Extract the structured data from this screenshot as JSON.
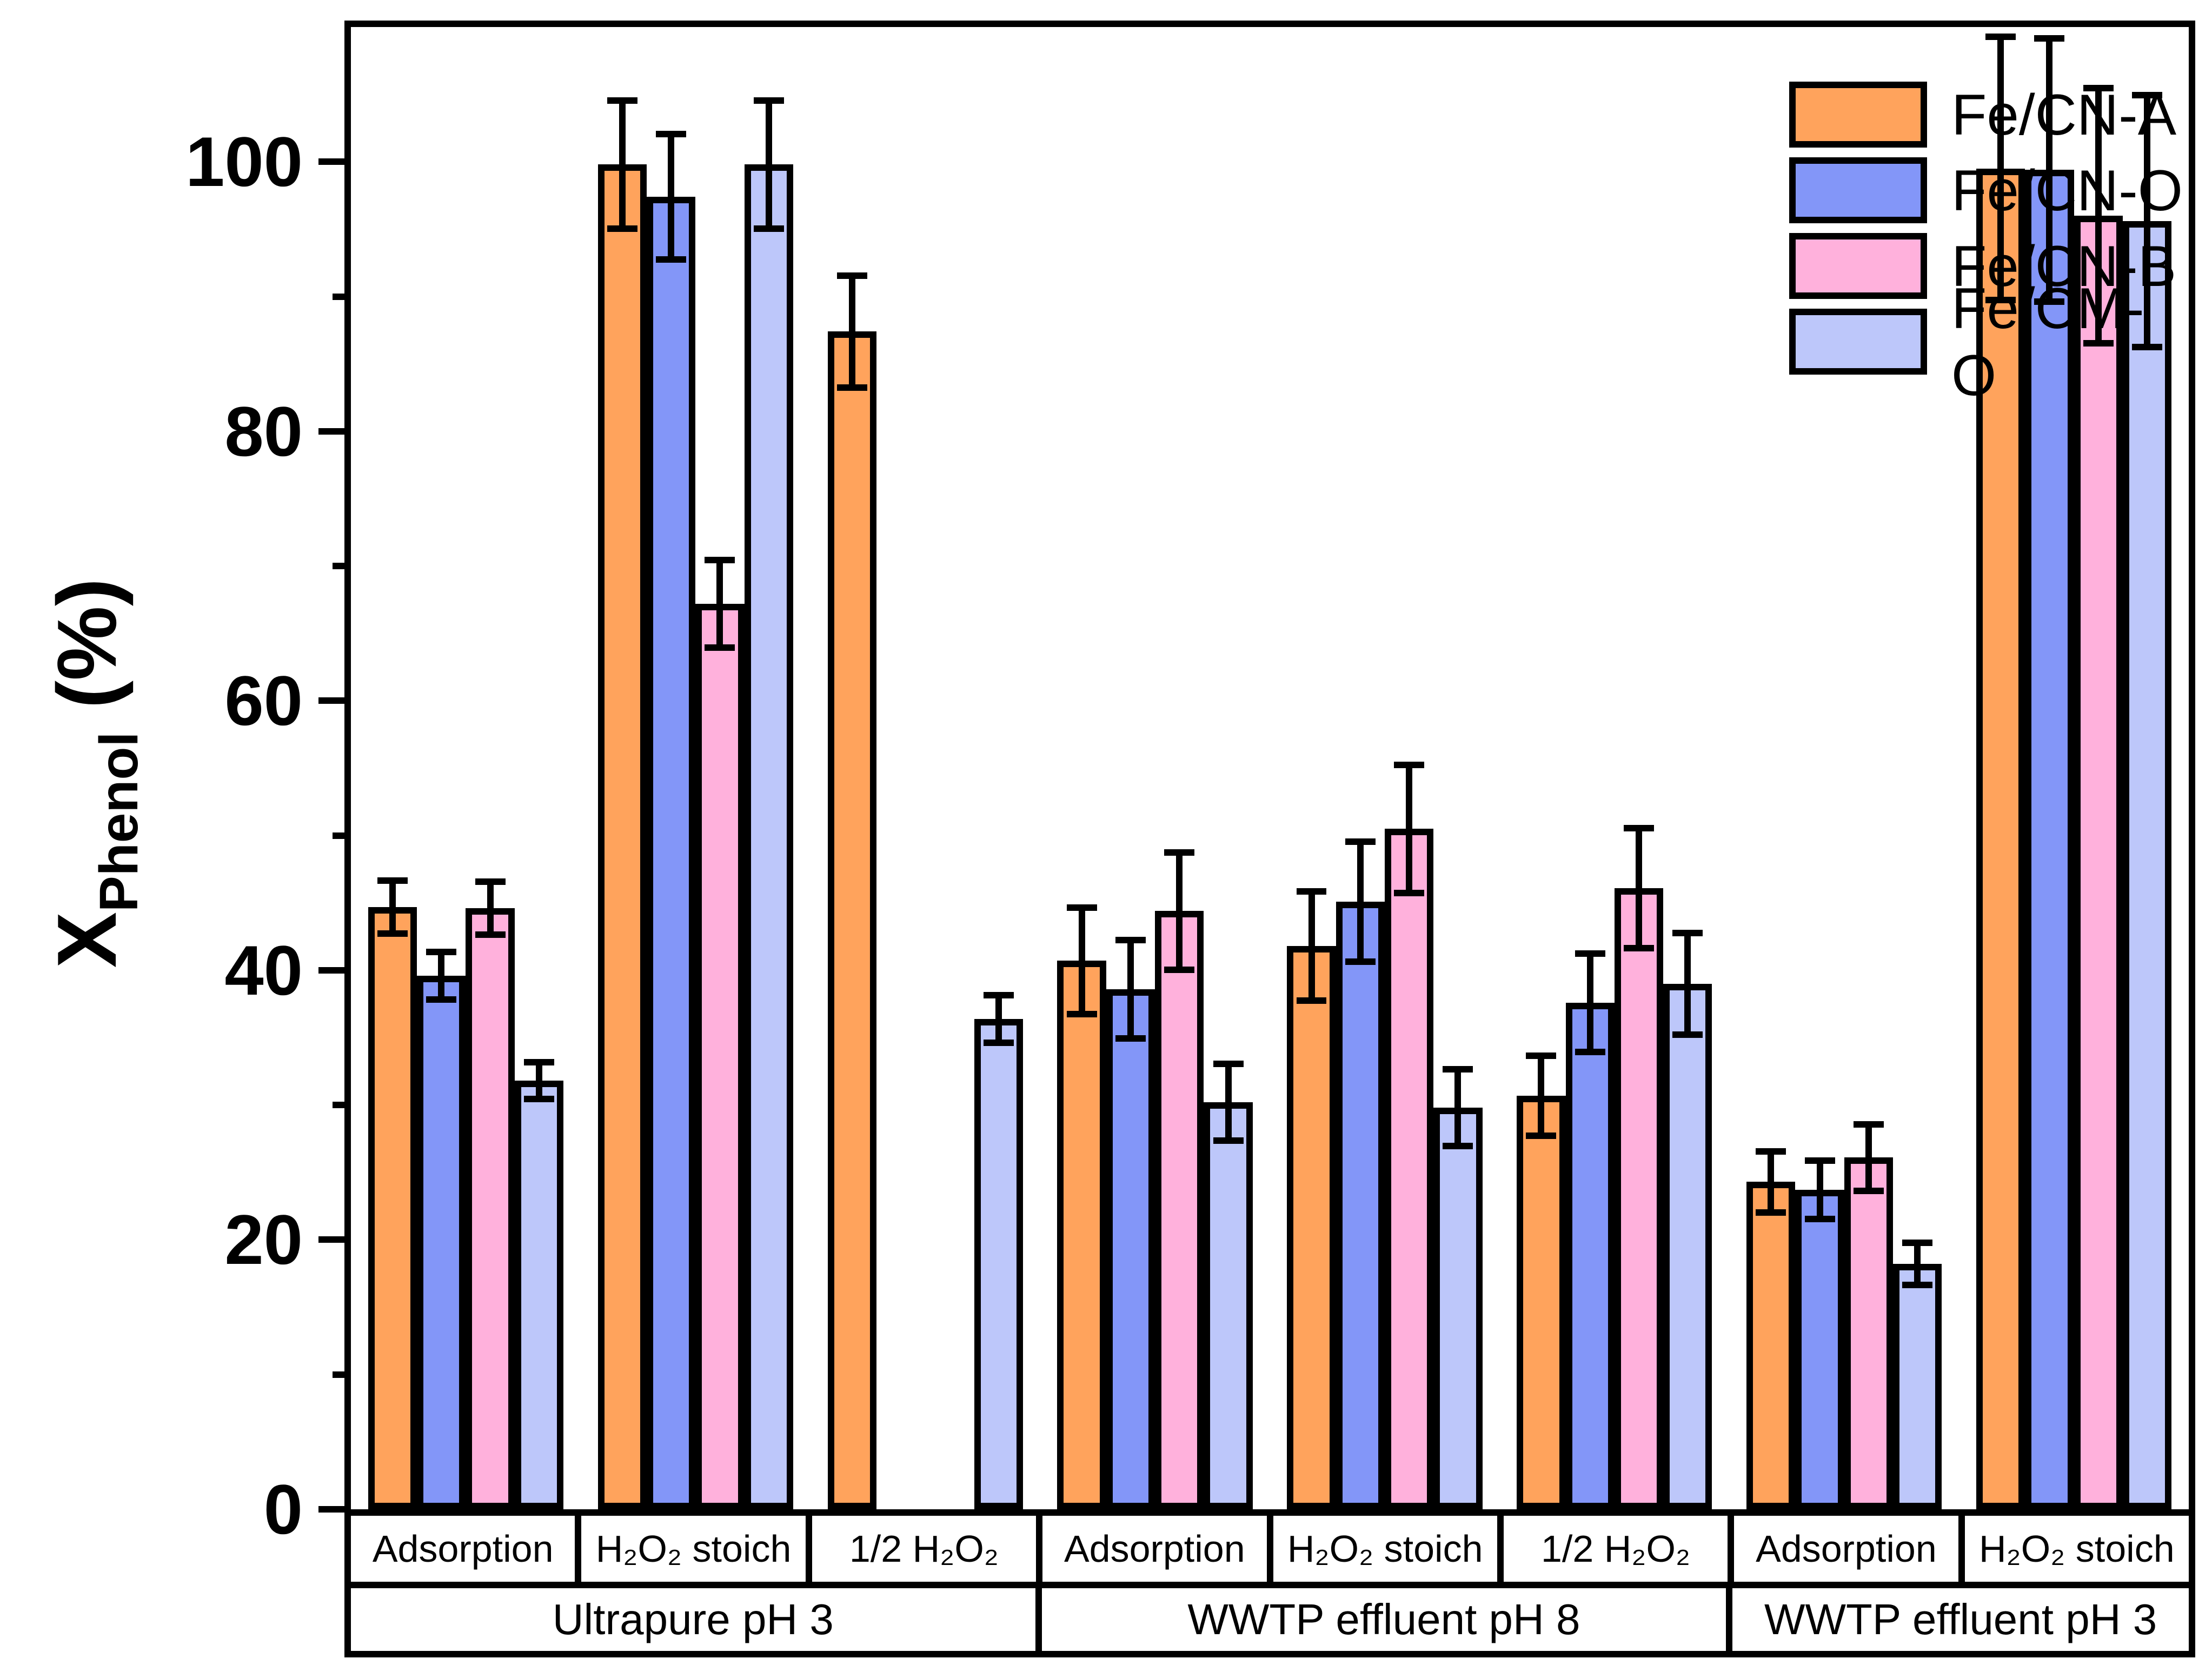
{
  "chart_data": {
    "type": "bar",
    "title": "",
    "ylabel": {
      "main": "X",
      "sub": "Phenol",
      "unit": " (%)"
    },
    "ylim": [
      0,
      110
    ],
    "yticks_major": [
      0,
      20,
      40,
      60,
      80,
      100
    ],
    "yticks_minor": [
      10,
      30,
      50,
      70,
      90
    ],
    "grid": false,
    "legend_position": "top-right-inside",
    "categories": [
      "Adsorption",
      "H₂O₂ stoich",
      "1/2 H₂O₂",
      "Adsorption",
      "H₂O₂ stoich",
      "1/2 H₂O₂",
      "Adsorption",
      "H₂O₂ stoich"
    ],
    "category_groups": [
      {
        "label": "Ultrapure pH 3",
        "span": 3
      },
      {
        "label": "WWTP effluent pH 8",
        "span": 3
      },
      {
        "label": "WWTP effluent pH 3",
        "span": 2
      }
    ],
    "series": [
      {
        "name": "Fe/CN-A",
        "color": "#FFA35C",
        "values": [
          44.7,
          99.8,
          87.4,
          40.7,
          41.8,
          30.7,
          24.3,
          99.5
        ],
        "errors": [
          2.2,
          5.0,
          4.4,
          4.2,
          4.3,
          3.2,
          2.5,
          10.0
        ]
      },
      {
        "name": "Fe/CN-O",
        "color": "#8396F8",
        "values": [
          39.6,
          97.4,
          null,
          38.6,
          45.1,
          37.6,
          23.7,
          99.4
        ],
        "errors": [
          2.0,
          4.9,
          null,
          3.9,
          4.7,
          3.9,
          2.4,
          10.0
        ]
      },
      {
        "name": "Fe/CN-B",
        "color": "#FFB1DC",
        "values": [
          44.6,
          67.2,
          null,
          44.4,
          50.5,
          46.1,
          26.1,
          96.0
        ],
        "errors": [
          2.2,
          3.5,
          null,
          4.6,
          5.0,
          4.7,
          2.7,
          9.7
        ]
      },
      {
        "name": "Fe/CM-O",
        "color": "#BDC7FA",
        "values": [
          31.8,
          99.8,
          36.4,
          30.2,
          29.8,
          39.0,
          18.2,
          95.6
        ],
        "errors": [
          1.6,
          5.0,
          2.0,
          3.1,
          3.1,
          4.0,
          1.8,
          9.6
        ]
      }
    ],
    "bar_outline_color": "#000000",
    "background_color": "#FFFFFF"
  }
}
